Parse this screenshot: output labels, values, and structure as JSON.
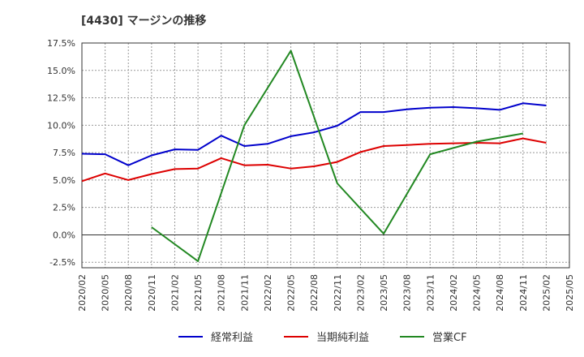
{
  "chart_data": {
    "type": "line",
    "title": "[4430]  マージンの推移",
    "xlabel": "",
    "ylabel": "",
    "x_ticks": [
      "2020/02",
      "2020/05",
      "2020/08",
      "2020/11",
      "2021/02",
      "2021/05",
      "2021/08",
      "2021/11",
      "2022/02",
      "2022/05",
      "2022/08",
      "2022/11",
      "2023/02",
      "2023/05",
      "2023/08",
      "2023/11",
      "2024/02",
      "2024/05",
      "2024/08",
      "2024/11",
      "2025/02",
      "2025/05"
    ],
    "y_ticks": [
      -2.5,
      0.0,
      2.5,
      5.0,
      7.5,
      10.0,
      12.5,
      15.0,
      17.5
    ],
    "y_tick_labels": [
      "-2.5%",
      "0.0%",
      "2.5%",
      "5.0%",
      "7.5%",
      "10.0%",
      "12.5%",
      "15.0%",
      "17.5%"
    ],
    "ylim": [
      -3.0,
      17.5
    ],
    "grid": true,
    "legend_position": "bottom",
    "series": [
      {
        "name": "経常利益",
        "color": "#0000cc",
        "points": [
          [
            "2020/02",
            7.4
          ],
          [
            "2020/05",
            7.35
          ],
          [
            "2020/08",
            6.35
          ],
          [
            "2020/11",
            7.25
          ],
          [
            "2021/02",
            7.8
          ],
          [
            "2021/05",
            7.75
          ],
          [
            "2021/08",
            9.05
          ],
          [
            "2021/11",
            8.1
          ],
          [
            "2022/02",
            8.3
          ],
          [
            "2022/05",
            9.0
          ],
          [
            "2022/08",
            9.35
          ],
          [
            "2022/11",
            9.95
          ],
          [
            "2023/02",
            11.2
          ],
          [
            "2023/05",
            11.2
          ],
          [
            "2023/08",
            11.45
          ],
          [
            "2023/11",
            11.6
          ],
          [
            "2024/02",
            11.65
          ],
          [
            "2024/05",
            11.55
          ],
          [
            "2024/08",
            11.4
          ],
          [
            "2024/11",
            12.0
          ],
          [
            "2025/02",
            11.8
          ]
        ]
      },
      {
        "name": "当期純利益",
        "color": "#dd0000",
        "points": [
          [
            "2020/02",
            4.9
          ],
          [
            "2020/05",
            5.6
          ],
          [
            "2020/08",
            5.0
          ],
          [
            "2020/11",
            5.55
          ],
          [
            "2021/02",
            6.0
          ],
          [
            "2021/05",
            6.05
          ],
          [
            "2021/08",
            7.0
          ],
          [
            "2021/11",
            6.35
          ],
          [
            "2022/02",
            6.4
          ],
          [
            "2022/05",
            6.05
          ],
          [
            "2022/08",
            6.25
          ],
          [
            "2022/11",
            6.65
          ],
          [
            "2023/02",
            7.55
          ],
          [
            "2023/05",
            8.1
          ],
          [
            "2023/08",
            8.2
          ],
          [
            "2023/11",
            8.3
          ],
          [
            "2024/02",
            8.35
          ],
          [
            "2024/05",
            8.4
          ],
          [
            "2024/08",
            8.35
          ],
          [
            "2024/11",
            8.8
          ],
          [
            "2025/02",
            8.4
          ]
        ]
      },
      {
        "name": "営業CF",
        "color": "#228822",
        "points": [
          [
            "2020/11",
            0.7
          ],
          [
            "2021/05",
            -2.4
          ],
          [
            "2021/11",
            10.0
          ],
          [
            "2022/05",
            16.8
          ],
          [
            "2022/11",
            4.7
          ],
          [
            "2023/05",
            0.1
          ],
          [
            "2023/11",
            7.35
          ],
          [
            "2024/05",
            8.5
          ],
          [
            "2024/11",
            9.25
          ]
        ]
      }
    ]
  }
}
